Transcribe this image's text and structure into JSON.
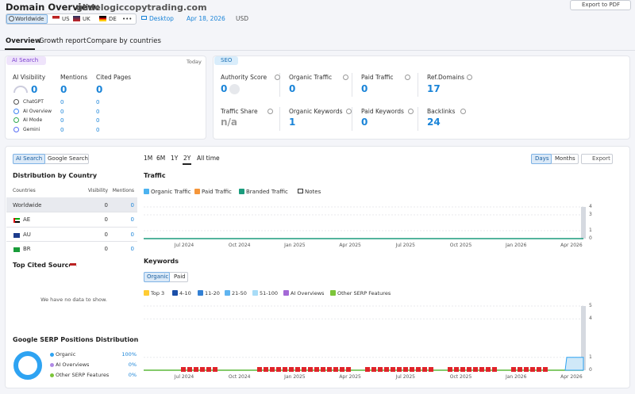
{
  "header": {
    "title": "Domain Overview:",
    "domain": "glidelogiccopytrading.com",
    "export": "Export to PDF",
    "db_tabs": [
      "Worldwide",
      "US",
      "UK",
      "DE",
      "•••"
    ],
    "device": "Desktop",
    "date": "Apr 18, 2026",
    "currency": "USD"
  },
  "tabs": [
    "Overview",
    "Growth report",
    "Compare by countries"
  ],
  "ai_search": {
    "label": "AI Search",
    "date": "Today",
    "metrics": [
      {
        "label": "AI Visibility",
        "value": "0"
      },
      {
        "label": "Mentions",
        "value": "0"
      },
      {
        "label": "Cited Pages",
        "value": "0"
      }
    ],
    "rows": [
      {
        "name": "ChatGPT",
        "mentions": "0",
        "cited": "0"
      },
      {
        "name": "AI Overview",
        "mentions": "0",
        "cited": "0"
      },
      {
        "name": "AI Mode",
        "mentions": "0",
        "cited": "0"
      },
      {
        "name": "Gemini",
        "mentions": "0",
        "cited": "0"
      }
    ]
  },
  "seo": {
    "label": "SEO",
    "metrics": [
      {
        "label": "Authority Score",
        "value": "0"
      },
      {
        "label": "Organic Traffic",
        "value": "0"
      },
      {
        "label": "Paid Traffic",
        "value": "0"
      },
      {
        "label": "Ref.Domains",
        "value": "17"
      },
      {
        "label": "Traffic Share",
        "value": "n/a"
      },
      {
        "label": "Organic Keywords",
        "value": "1"
      },
      {
        "label": "Paid Keywords",
        "value": "0"
      },
      {
        "label": "Backlinks",
        "value": "24"
      }
    ]
  },
  "distribution": {
    "toggle": [
      "AI Search",
      "Google Search"
    ],
    "title": "Distribution by Country",
    "columns": [
      "Countries",
      "Visibility",
      "Mentions"
    ],
    "rows": [
      [
        "Worldwide",
        "0",
        "0"
      ],
      [
        "AE",
        "0",
        "0"
      ],
      [
        "AU",
        "0",
        "0"
      ],
      [
        "BR",
        "0",
        "0"
      ]
    ]
  },
  "cited_sources": {
    "title": "Top Cited Sources",
    "empty": "We have no data to show."
  },
  "serp": {
    "title": "Google SERP Positions Distribution",
    "rows": [
      {
        "name": "Organic",
        "value": "100%"
      },
      {
        "name": "AI Overviews",
        "value": "0%"
      },
      {
        "name": "Other SERP Features",
        "value": "0%"
      }
    ]
  },
  "periods": [
    "1M",
    "6M",
    "1Y",
    "2Y",
    "All time"
  ],
  "view": [
    "Days",
    "Months"
  ],
  "export": "Export",
  "xticks": [
    "Jul 2024",
    "Oct 2024",
    "Jan 2025",
    "Apr 2025",
    "Jul 2025",
    "Oct 2025",
    "Jan 2026",
    "Apr 2026"
  ],
  "traffic": {
    "title": "Traffic",
    "legend": [
      "Organic Traffic",
      "Paid Traffic",
      "Branded Traffic"
    ],
    "notes": "Notes",
    "ylim": [
      0,
      4
    ],
    "yticks": [
      0,
      1,
      3,
      4
    ]
  },
  "keywords": {
    "title": "Keywords",
    "toggle": [
      "Organic",
      "Paid"
    ],
    "legend": [
      "Top 3",
      "4-10",
      "11-20",
      "21-50",
      "51-100",
      "AI Overviews",
      "Other SERP Features"
    ],
    "ylim": [
      0,
      5
    ],
    "yticks": [
      0,
      1,
      4,
      5
    ]
  }
}
